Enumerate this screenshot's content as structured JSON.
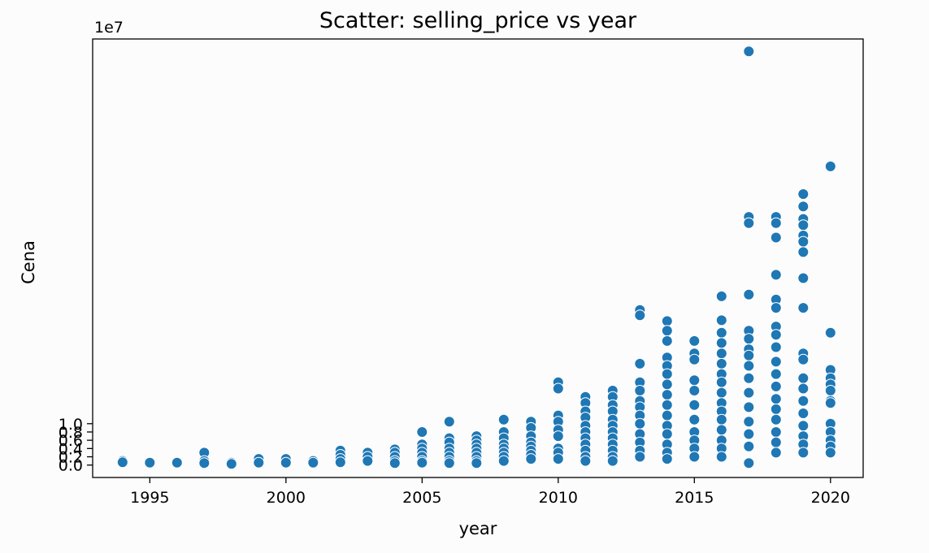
{
  "chart_data": {
    "type": "scatter",
    "title": "Scatter: selling_price vs year",
    "xlabel": "year",
    "ylabel": "Cena",
    "y_offset_label": "1e7",
    "xlim": [
      1992.9,
      2021.2
    ],
    "ylim": [
      -0.3,
      10.3
    ],
    "y_scale_note": "y values in units of 1e7 (multiplier shown as axis offset)",
    "xticks": [
      1995,
      2000,
      2005,
      2010,
      2015,
      2020
    ],
    "xtick_labels": [
      "1995",
      "2000",
      "2005",
      "2010",
      "2015",
      "2020"
    ],
    "yticks": [
      0.0,
      0.2,
      0.4,
      0.6,
      0.8,
      1.0
    ],
    "ytick_labels": [
      "0.0",
      "0.2",
      "0.4",
      "0.6",
      "0.8",
      "1.0"
    ],
    "grid": false,
    "legend": "none",
    "marker_color": "#1f77b4",
    "series": [
      {
        "points": [
          [
            1994,
            0.1
          ],
          [
            1994,
            0.07
          ],
          [
            1995,
            0.06
          ],
          [
            1996,
            0.06
          ],
          [
            1997,
            0.3
          ],
          [
            1997,
            0.1
          ],
          [
            1997,
            0.05
          ],
          [
            1998,
            0.06
          ],
          [
            1998,
            0.03
          ],
          [
            1999,
            0.15
          ],
          [
            1999,
            0.06
          ],
          [
            2000,
            0.15
          ],
          [
            2000,
            0.06
          ],
          [
            2001,
            0.1
          ],
          [
            2001,
            0.06
          ],
          [
            2002,
            0.35
          ],
          [
            2002,
            0.25
          ],
          [
            2002,
            0.15
          ],
          [
            2002,
            0.07
          ],
          [
            2003,
            0.3
          ],
          [
            2003,
            0.2
          ],
          [
            2003,
            0.1
          ],
          [
            2004,
            0.38
          ],
          [
            2004,
            0.3
          ],
          [
            2004,
            0.2
          ],
          [
            2004,
            0.1
          ],
          [
            2004,
            0.05
          ],
          [
            2005,
            0.8
          ],
          [
            2005,
            0.5
          ],
          [
            2005,
            0.4
          ],
          [
            2005,
            0.3
          ],
          [
            2005,
            0.2
          ],
          [
            2005,
            0.1
          ],
          [
            2005,
            0.06
          ],
          [
            2006,
            1.05
          ],
          [
            2006,
            0.65
          ],
          [
            2006,
            0.55
          ],
          [
            2006,
            0.4
          ],
          [
            2006,
            0.3
          ],
          [
            2006,
            0.2
          ],
          [
            2006,
            0.1
          ],
          [
            2006,
            0.05
          ],
          [
            2007,
            0.7
          ],
          [
            2007,
            0.6
          ],
          [
            2007,
            0.5
          ],
          [
            2007,
            0.4
          ],
          [
            2007,
            0.3
          ],
          [
            2007,
            0.2
          ],
          [
            2007,
            0.1
          ],
          [
            2007,
            0.05
          ],
          [
            2008,
            1.1
          ],
          [
            2008,
            0.8
          ],
          [
            2008,
            0.65
          ],
          [
            2008,
            0.5
          ],
          [
            2008,
            0.4
          ],
          [
            2008,
            0.3
          ],
          [
            2008,
            0.2
          ],
          [
            2008,
            0.1
          ],
          [
            2009,
            1.05
          ],
          [
            2009,
            0.9
          ],
          [
            2009,
            0.7
          ],
          [
            2009,
            0.55
          ],
          [
            2009,
            0.45
          ],
          [
            2009,
            0.35
          ],
          [
            2009,
            0.25
          ],
          [
            2009,
            0.15
          ],
          [
            2010,
            2.0
          ],
          [
            2010,
            1.85
          ],
          [
            2010,
            1.2
          ],
          [
            2010,
            1.05
          ],
          [
            2010,
            0.85
          ],
          [
            2010,
            0.7
          ],
          [
            2010,
            0.4
          ],
          [
            2010,
            0.3
          ],
          [
            2010,
            0.15
          ],
          [
            2011,
            1.65
          ],
          [
            2011,
            1.5
          ],
          [
            2011,
            1.3
          ],
          [
            2011,
            1.15
          ],
          [
            2011,
            0.95
          ],
          [
            2011,
            0.8
          ],
          [
            2011,
            0.65
          ],
          [
            2011,
            0.5
          ],
          [
            2011,
            0.35
          ],
          [
            2011,
            0.2
          ],
          [
            2011,
            0.1
          ],
          [
            2012,
            1.8
          ],
          [
            2012,
            1.65
          ],
          [
            2012,
            1.45
          ],
          [
            2012,
            1.3
          ],
          [
            2012,
            1.1
          ],
          [
            2012,
            0.95
          ],
          [
            2012,
            0.8
          ],
          [
            2012,
            0.65
          ],
          [
            2012,
            0.5
          ],
          [
            2012,
            0.35
          ],
          [
            2012,
            0.2
          ],
          [
            2012,
            0.1
          ],
          [
            2013,
            3.75
          ],
          [
            2013,
            3.62
          ],
          [
            2013,
            2.45
          ],
          [
            2013,
            2.0
          ],
          [
            2013,
            1.8
          ],
          [
            2013,
            1.55
          ],
          [
            2013,
            1.4
          ],
          [
            2013,
            1.2
          ],
          [
            2013,
            1.0
          ],
          [
            2013,
            0.75
          ],
          [
            2013,
            0.55
          ],
          [
            2013,
            0.35
          ],
          [
            2013,
            0.2
          ],
          [
            2014,
            3.48
          ],
          [
            2014,
            3.25
          ],
          [
            2014,
            3.0
          ],
          [
            2014,
            2.6
          ],
          [
            2014,
            2.4
          ],
          [
            2014,
            2.2
          ],
          [
            2014,
            1.95
          ],
          [
            2014,
            1.7
          ],
          [
            2014,
            1.45
          ],
          [
            2014,
            1.2
          ],
          [
            2014,
            0.95
          ],
          [
            2014,
            0.75
          ],
          [
            2014,
            0.5
          ],
          [
            2014,
            0.3
          ],
          [
            2014,
            0.15
          ],
          [
            2015,
            3.0
          ],
          [
            2015,
            2.7
          ],
          [
            2015,
            2.55
          ],
          [
            2015,
            2.05
          ],
          [
            2015,
            1.8
          ],
          [
            2015,
            1.45
          ],
          [
            2015,
            1.1
          ],
          [
            2015,
            0.8
          ],
          [
            2015,
            0.6
          ],
          [
            2015,
            0.4
          ],
          [
            2015,
            0.2
          ],
          [
            2016,
            4.08
          ],
          [
            2016,
            3.5
          ],
          [
            2016,
            3.2
          ],
          [
            2016,
            2.95
          ],
          [
            2016,
            2.7
          ],
          [
            2016,
            2.45
          ],
          [
            2016,
            2.2
          ],
          [
            2016,
            2.0
          ],
          [
            2016,
            1.75
          ],
          [
            2016,
            1.5
          ],
          [
            2016,
            1.3
          ],
          [
            2016,
            1.1
          ],
          [
            2016,
            0.85
          ],
          [
            2016,
            0.6
          ],
          [
            2016,
            0.4
          ],
          [
            2016,
            0.2
          ],
          [
            2017,
            10.0
          ],
          [
            2017,
            6.0
          ],
          [
            2017,
            5.85
          ],
          [
            2017,
            4.12
          ],
          [
            2017,
            3.25
          ],
          [
            2017,
            3.05
          ],
          [
            2017,
            2.8
          ],
          [
            2017,
            2.65
          ],
          [
            2017,
            2.4
          ],
          [
            2017,
            2.1
          ],
          [
            2017,
            1.75
          ],
          [
            2017,
            1.4
          ],
          [
            2017,
            1.05
          ],
          [
            2017,
            0.75
          ],
          [
            2017,
            0.45
          ],
          [
            2017,
            0.05
          ],
          [
            2018,
            6.0
          ],
          [
            2018,
            5.85
          ],
          [
            2018,
            5.5
          ],
          [
            2018,
            4.6
          ],
          [
            2018,
            4.0
          ],
          [
            2018,
            3.8
          ],
          [
            2018,
            3.35
          ],
          [
            2018,
            3.15
          ],
          [
            2018,
            2.85
          ],
          [
            2018,
            2.5
          ],
          [
            2018,
            2.2
          ],
          [
            2018,
            1.9
          ],
          [
            2018,
            1.6
          ],
          [
            2018,
            1.35
          ],
          [
            2018,
            1.1
          ],
          [
            2018,
            0.8
          ],
          [
            2018,
            0.55
          ],
          [
            2018,
            0.3
          ],
          [
            2019,
            6.55
          ],
          [
            2019,
            6.25
          ],
          [
            2019,
            5.95
          ],
          [
            2019,
            5.8
          ],
          [
            2019,
            5.55
          ],
          [
            2019,
            5.4
          ],
          [
            2019,
            5.15
          ],
          [
            2019,
            4.52
          ],
          [
            2019,
            3.8
          ],
          [
            2019,
            2.7
          ],
          [
            2019,
            2.55
          ],
          [
            2019,
            2.1
          ],
          [
            2019,
            1.85
          ],
          [
            2019,
            1.55
          ],
          [
            2019,
            1.25
          ],
          [
            2019,
            0.95
          ],
          [
            2019,
            0.7
          ],
          [
            2019,
            0.5
          ],
          [
            2019,
            0.3
          ],
          [
            2020,
            7.22
          ],
          [
            2020,
            3.2
          ],
          [
            2020,
            2.3
          ],
          [
            2020,
            2.1
          ],
          [
            2020,
            1.95
          ],
          [
            2020,
            1.8
          ],
          [
            2020,
            1.55
          ],
          [
            2020,
            1.5
          ],
          [
            2020,
            1.0
          ],
          [
            2020,
            0.8
          ],
          [
            2020,
            0.6
          ],
          [
            2020,
            0.45
          ],
          [
            2020,
            0.3
          ]
        ]
      }
    ]
  }
}
